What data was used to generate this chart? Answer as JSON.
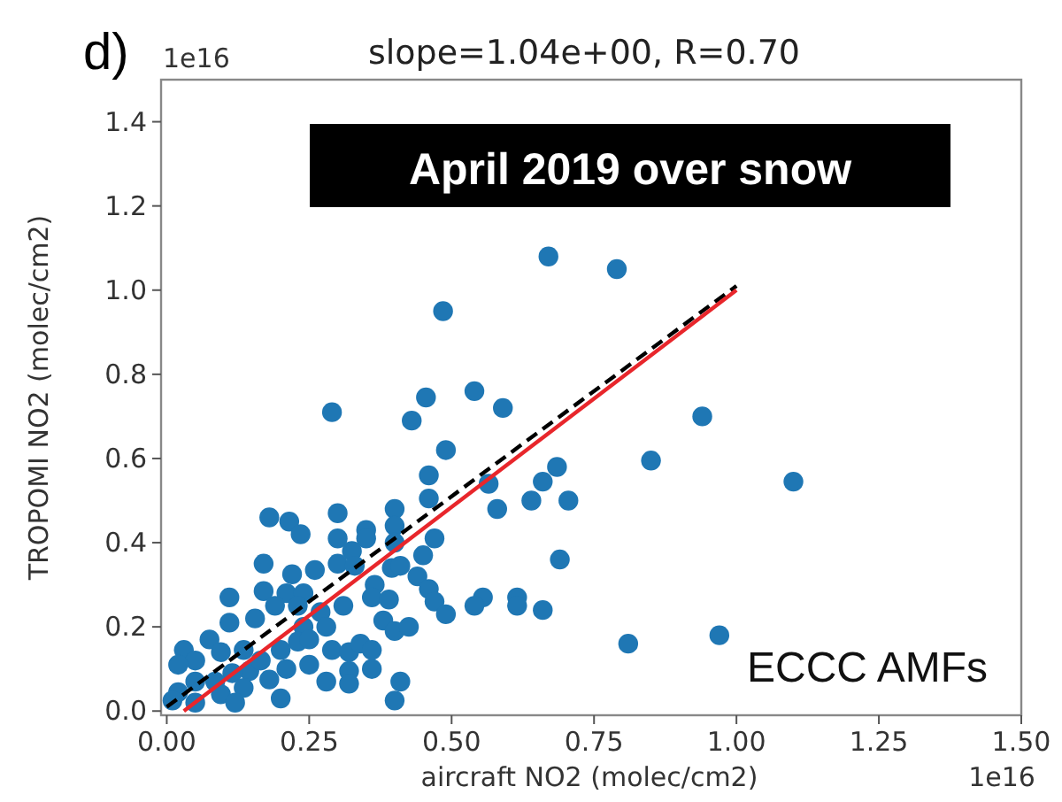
{
  "chart_data": {
    "type": "scatter",
    "title": "slope=1.04e+00, R=0.70",
    "xlabel": "aircraft NO2 (molec/cm2)",
    "ylabel": "TROPOMI NO2 (molec/cm2)",
    "annotations": [
      "d)",
      "1e16",
      "April 2019 over snow",
      "ECCC AMFs",
      "1e16"
    ],
    "xlim": [
      -0.01,
      1.5
    ],
    "ylim": [
      -0.01,
      1.5
    ],
    "xticks": [
      {
        "value": 0,
        "label": "0.00"
      },
      0.25,
      {
        "value": 0.5,
        "label": "0.50"
      },
      0.75,
      {
        "value": 1,
        "label": "1.00"
      },
      1.25,
      {
        "value": 1.5,
        "label": "1.50"
      }
    ],
    "yticks": [
      {
        "value": 0,
        "label": "0.0"
      },
      0.2,
      0.4,
      0.6,
      0.8,
      {
        "value": 1,
        "label": "1.0"
      },
      1.2,
      1.4
    ],
    "grid": false,
    "series": [
      {
        "color": "#1f77b4",
        "marker": "circle",
        "x": [
          0.67,
          0.79,
          0.485,
          0.29,
          0.455,
          0.54,
          0.43,
          0.59,
          0.49,
          0.46,
          0.685,
          0.66,
          0.64,
          0.705,
          0.565,
          0.58,
          0.46,
          0.4,
          0.47,
          0.45,
          0.44,
          0.46,
          0.47,
          0.49,
          0.69,
          0.555,
          0.54,
          0.615,
          0.615,
          0.66,
          0.18,
          0.215,
          0.235,
          0.3,
          0.3,
          0.35,
          0.35,
          0.325,
          0.4,
          0.4,
          0.26,
          0.22,
          0.17,
          0.3,
          0.33,
          0.395,
          0.41,
          0.365,
          0.36,
          0.39,
          0.31,
          0.38,
          0.4,
          0.425,
          0.11,
          0.17,
          0.21,
          0.24,
          0.155,
          0.19,
          0.23,
          0.27,
          0.24,
          0.28,
          0.11,
          0.075,
          0.03,
          0.05,
          0.095,
          0.135,
          0.2,
          0.23,
          0.29,
          0.32,
          0.34,
          0.36,
          0.36,
          0.32,
          0.32,
          0.28,
          0.41,
          0.4,
          0.2,
          0.18,
          0.145,
          0.115,
          0.085,
          0.05,
          0.02,
          0.01,
          0.095,
          0.135,
          0.05,
          0.12,
          0.165,
          0.21,
          0.25,
          0.25,
          0.02,
          0.94,
          0.85,
          1.1,
          0.81,
          0.97
        ],
        "values": [
          1.08,
          1.05,
          0.95,
          0.71,
          0.745,
          0.76,
          0.69,
          0.72,
          0.62,
          0.56,
          0.58,
          0.545,
          0.5,
          0.5,
          0.54,
          0.48,
          0.505,
          0.48,
          0.41,
          0.37,
          0.32,
          0.29,
          0.26,
          0.23,
          0.36,
          0.27,
          0.25,
          0.27,
          0.25,
          0.24,
          0.46,
          0.45,
          0.42,
          0.47,
          0.41,
          0.43,
          0.41,
          0.38,
          0.44,
          0.4,
          0.335,
          0.325,
          0.35,
          0.35,
          0.345,
          0.34,
          0.345,
          0.3,
          0.27,
          0.265,
          0.25,
          0.215,
          0.19,
          0.2,
          0.27,
          0.285,
          0.28,
          0.28,
          0.22,
          0.25,
          0.25,
          0.235,
          0.2,
          0.2,
          0.21,
          0.17,
          0.145,
          0.12,
          0.14,
          0.145,
          0.145,
          0.165,
          0.145,
          0.14,
          0.16,
          0.145,
          0.1,
          0.095,
          0.065,
          0.07,
          0.07,
          0.025,
          0.03,
          0.075,
          0.095,
          0.09,
          0.07,
          0.07,
          0.045,
          0.025,
          0.04,
          0.055,
          0.02,
          0.02,
          0.12,
          0.1,
          0.17,
          0.11,
          0.11,
          0.7,
          0.595,
          0.545,
          0.16,
          0.18
        ]
      },
      {
        "type": "line",
        "color": "#000000",
        "line_style": "dashed",
        "x": [
          0,
          1
        ],
        "values": [
          0.01,
          1.01
        ]
      },
      {
        "type": "line",
        "color": "#e8262b",
        "line_style": "solid",
        "x": [
          0.03,
          1
        ],
        "values": [
          0,
          1.0
        ]
      }
    ]
  }
}
